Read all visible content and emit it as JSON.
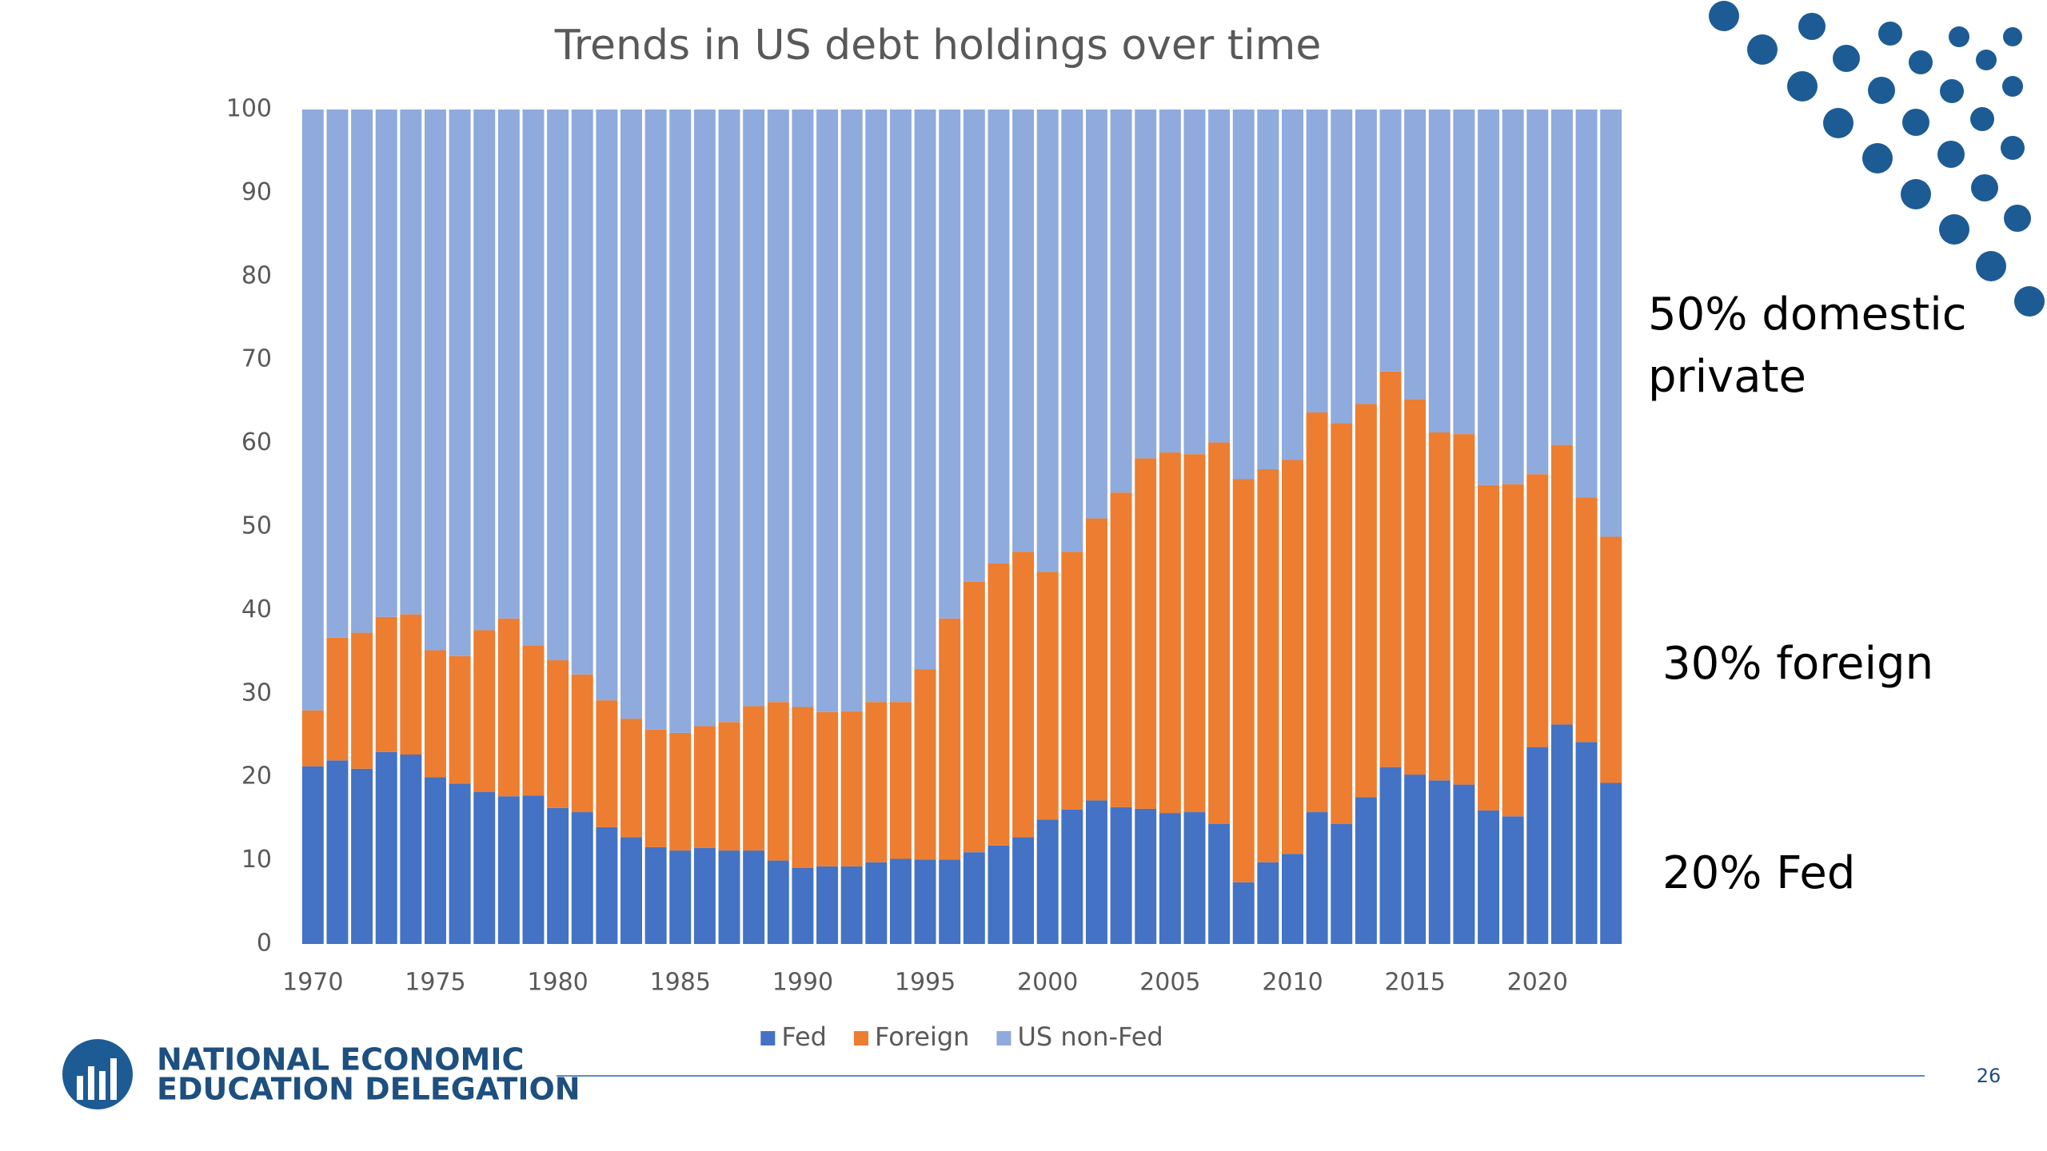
{
  "chart_data": {
    "type": "stacked-bar",
    "title": "Trends in US debt holdings over time",
    "x": [
      1970,
      1971,
      1972,
      1973,
      1974,
      1975,
      1976,
      1977,
      1978,
      1979,
      1980,
      1981,
      1982,
      1983,
      1984,
      1985,
      1986,
      1987,
      1988,
      1989,
      1990,
      1991,
      1992,
      1993,
      1994,
      1995,
      1996,
      1997,
      1998,
      1999,
      2000,
      2001,
      2002,
      2003,
      2004,
      2005,
      2006,
      2007,
      2008,
      2009,
      2010,
      2011,
      2012,
      2013,
      2014,
      2015,
      2016,
      2017,
      2018,
      2019,
      2020,
      2021,
      2022,
      2023
    ],
    "series": [
      {
        "name": "Fed",
        "color": "#4472c4",
        "values": [
          21.3,
          22,
          21,
          23,
          22.7,
          20,
          19.2,
          18.2,
          17.7,
          17.8,
          16.3,
          15.8,
          14,
          12.8,
          11.6,
          11.2,
          11.5,
          11.2,
          11.2,
          10,
          9.1,
          9.3,
          9.3,
          9.8,
          10.2,
          10.1,
          10.1,
          11,
          11.8,
          12.8,
          14.9,
          16.1,
          17.2,
          16.4,
          16.2,
          15.7,
          15.8,
          14.4,
          7.4,
          9.8,
          10.8,
          15.8,
          14.4,
          17.6,
          21.2,
          20.3,
          19.6,
          19.1,
          16,
          15.3,
          23.6,
          26.3,
          24.2,
          19.3
        ]
      },
      {
        "name": "Foreign",
        "color": "#ed7d31",
        "values": [
          6.7,
          14.7,
          16.3,
          16.2,
          16.8,
          15.2,
          15.3,
          19.4,
          21.3,
          18,
          17.7,
          16.5,
          15.2,
          14.2,
          14.1,
          14.1,
          14.6,
          15.4,
          17.3,
          19,
          19.3,
          18.5,
          18.6,
          19.2,
          18.8,
          22.8,
          28.9,
          32.4,
          33.8,
          34.2,
          29.7,
          30.9,
          33.8,
          37.7,
          42,
          43.2,
          42.9,
          45.7,
          48.3,
          47.1,
          47.2,
          47.9,
          48,
          47.1,
          47.4,
          45,
          41.7,
          42,
          39,
          39.8,
          32.7,
          33.5,
          29.3,
          29.5
        ]
      },
      {
        "name": "US non-Fed",
        "color": "#8faadc",
        "values": [
          72,
          63.3,
          62.7,
          60.8,
          60.5,
          64.8,
          65.5,
          62.4,
          61,
          64.2,
          66,
          67.7,
          70.8,
          73,
          74.3,
          74.7,
          73.9,
          73.4,
          71.5,
          71,
          71.6,
          72.2,
          72.1,
          71,
          71,
          67.1,
          61,
          56.6,
          54.4,
          53,
          55.4,
          53,
          49,
          45.9,
          41.8,
          41.1,
          41.3,
          39.9,
          44.3,
          43.1,
          42,
          36.3,
          37.6,
          35.3,
          31.4,
          34.7,
          38.7,
          38.9,
          45,
          44.9,
          43.7,
          40.2,
          46.5,
          51.2
        ]
      }
    ],
    "xlim": [
      1969.5,
      2023.5
    ],
    "xticks": [
      1970,
      1975,
      1980,
      1985,
      1990,
      1995,
      2000,
      2005,
      2010,
      2015,
      2020
    ],
    "ylim": [
      0,
      100
    ],
    "yticks": [
      0,
      10,
      20,
      30,
      40,
      50,
      60,
      70,
      80,
      90,
      100
    ],
    "grid": false,
    "legend": "bottom",
    "annotations": [
      [
        "50% domestic",
        "private"
      ],
      [
        "30% foreign"
      ],
      [
        "20% Fed"
      ]
    ]
  },
  "footer": {
    "logo_lines": [
      "NATIONAL ECONOMIC",
      "EDUCATION DELEGATION"
    ],
    "page_number": 26
  }
}
